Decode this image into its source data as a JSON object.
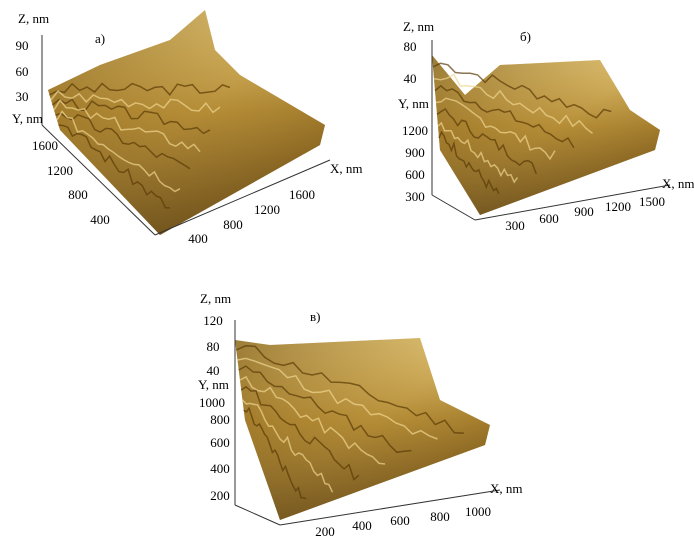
{
  "panels": [
    {
      "label": "а)",
      "z_axis": {
        "title": "Z, nm",
        "ticks": [
          "90",
          "60",
          "30"
        ]
      },
      "y_axis": {
        "title": "Y, nm",
        "ticks": [
          "1600",
          "1200",
          "800",
          "400"
        ]
      },
      "x_axis": {
        "title": "X, nm",
        "ticks": [
          "400",
          "800",
          "1200",
          "1600"
        ]
      }
    },
    {
      "label": "б)",
      "z_axis": {
        "title": "Z, nm",
        "ticks": [
          "80",
          "40"
        ]
      },
      "y_axis": {
        "title": "Y, nm",
        "ticks": [
          "1200",
          "900",
          "600",
          "300"
        ]
      },
      "x_axis": {
        "title": "X, nm",
        "ticks": [
          "300",
          "600",
          "900",
          "1200",
          "1500"
        ]
      }
    },
    {
      "label": "в)",
      "z_axis": {
        "title": "Z, nm",
        "ticks": [
          "120",
          "80",
          "40"
        ]
      },
      "y_axis": {
        "title": "Y, nm",
        "ticks": [
          "1000",
          "800",
          "600",
          "400",
          "200"
        ]
      },
      "x_axis": {
        "title": "X, nm",
        "ticks": [
          "200",
          "400",
          "600",
          "800",
          "1000"
        ]
      }
    }
  ]
}
